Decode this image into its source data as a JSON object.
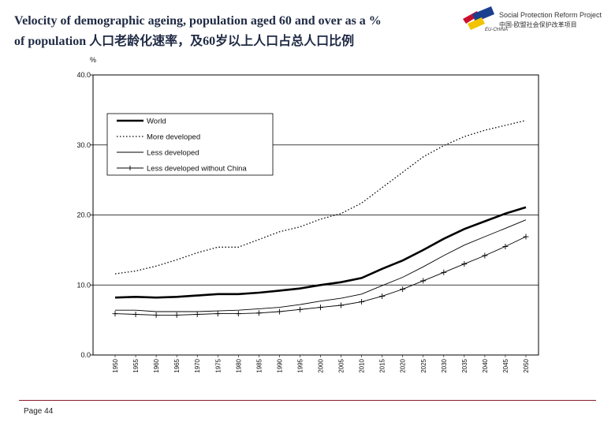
{
  "header": {
    "title_line1": "Velocity of demographic ageing, population aged 60 and over as a %",
    "title_line2": "of population  人口老龄化速率，及60岁以上人口占总人口比例",
    "logo_text_en": "Social Protection Reform Project",
    "logo_text_cn": "中国-欧盟社会保护改革项目",
    "logo_text_eu": "EU-CHINA",
    "logo_colors": [
      "#c8102e",
      "#1b3f8f",
      "#f2c300"
    ]
  },
  "footer": {
    "page_label": "Page 44",
    "rule_color": "#8a1c2b"
  },
  "chart_data": {
    "type": "line",
    "title": "",
    "ylabel": "%",
    "xlabel": "",
    "ylim": [
      0,
      40
    ],
    "yticks": [
      "0.0",
      "10.0",
      "20.0",
      "30.0",
      "40.0"
    ],
    "x": [
      "1950",
      "1955",
      "1960",
      "1965",
      "1970",
      "1975",
      "1980",
      "1985",
      "1990",
      "1995",
      "2000",
      "2005",
      "2010",
      "2015",
      "2020",
      "2025",
      "2030",
      "2035",
      "2040",
      "2045",
      "2050"
    ],
    "grid": "horizontal",
    "legend_position": "top-left",
    "series": [
      {
        "name": "World",
        "style": "thick",
        "values": [
          8.2,
          8.3,
          8.2,
          8.3,
          8.5,
          8.7,
          8.7,
          8.9,
          9.2,
          9.5,
          10.0,
          10.4,
          11.0,
          12.3,
          13.5,
          15.0,
          16.6,
          18.0,
          19.1,
          20.2,
          21.1
        ]
      },
      {
        "name": "More developed",
        "style": "dotted",
        "values": [
          11.6,
          12.0,
          12.7,
          13.6,
          14.6,
          15.4,
          15.4,
          16.5,
          17.6,
          18.3,
          19.4,
          20.2,
          21.7,
          23.9,
          26.1,
          28.3,
          29.9,
          31.2,
          32.1,
          32.8,
          33.5
        ]
      },
      {
        "name": "Less developed",
        "style": "thin",
        "values": [
          6.4,
          6.4,
          6.2,
          6.2,
          6.2,
          6.3,
          6.4,
          6.6,
          6.8,
          7.2,
          7.7,
          8.1,
          8.7,
          9.9,
          11.1,
          12.6,
          14.2,
          15.7,
          16.9,
          18.1,
          19.3
        ]
      },
      {
        "name": "Less developed without China",
        "style": "plus",
        "values": [
          5.9,
          5.8,
          5.7,
          5.7,
          5.8,
          5.9,
          5.9,
          6.0,
          6.2,
          6.5,
          6.8,
          7.1,
          7.6,
          8.4,
          9.4,
          10.6,
          11.8,
          13.0,
          14.2,
          15.5,
          16.9
        ]
      }
    ]
  }
}
